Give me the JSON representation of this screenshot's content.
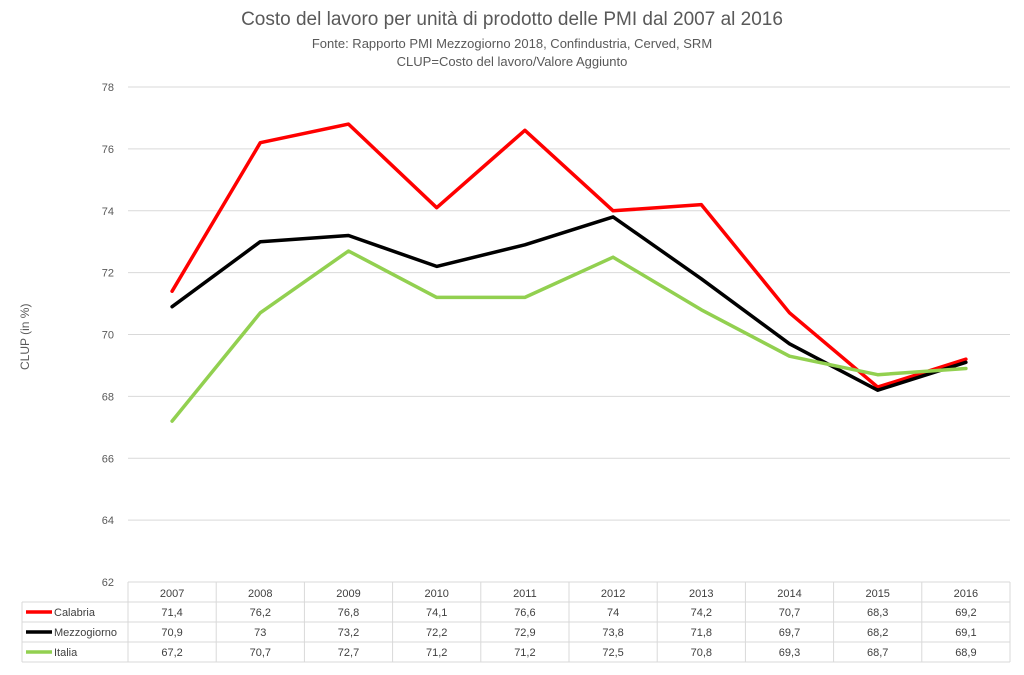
{
  "chart_data": {
    "type": "line",
    "title": "Costo del lavoro per unità di prodotto delle PMI dal 2007 al 2016",
    "subtitle_lines": [
      "Fonte: Rapporto PMI Mezzogiorno 2018, Confindustria, Cerved, SRM",
      "CLUP=Costo del lavoro/Valore Aggiunto"
    ],
    "xlabel": "",
    "ylabel": "CLUP (in %)",
    "ylim": [
      62,
      78
    ],
    "yticks": [
      "62",
      "64",
      "66",
      "68",
      "70",
      "72",
      "74",
      "76",
      "78"
    ],
    "grid": true,
    "legend": "data-table",
    "categories": [
      "2007",
      "2008",
      "2009",
      "2010",
      "2011",
      "2012",
      "2013",
      "2014",
      "2015",
      "2016"
    ],
    "series": [
      {
        "name": "Calabria",
        "color": "#ff0000",
        "values": [
          71.4,
          76.2,
          76.8,
          74.1,
          76.6,
          74.0,
          74.2,
          70.7,
          68.3,
          69.2
        ],
        "labels": [
          "71,4",
          "76,2",
          "76,8",
          "74,1",
          "76,6",
          "74",
          "74,2",
          "70,7",
          "68,3",
          "69,2"
        ]
      },
      {
        "name": "Mezzogiorno",
        "color": "#000000",
        "values": [
          70.9,
          73.0,
          73.2,
          72.2,
          72.9,
          73.8,
          71.8,
          69.7,
          68.2,
          69.1
        ],
        "labels": [
          "70,9",
          "73",
          "73,2",
          "72,2",
          "72,9",
          "73,8",
          "71,8",
          "69,7",
          "68,2",
          "69,1"
        ]
      },
      {
        "name": "Italia",
        "color": "#92d050",
        "values": [
          67.2,
          70.7,
          72.7,
          71.2,
          71.2,
          72.5,
          70.8,
          69.3,
          68.7,
          68.9
        ],
        "labels": [
          "67,2",
          "70,7",
          "72,7",
          "71,2",
          "71,2",
          "72,5",
          "70,8",
          "69,3",
          "68,7",
          "68,9"
        ]
      }
    ]
  }
}
